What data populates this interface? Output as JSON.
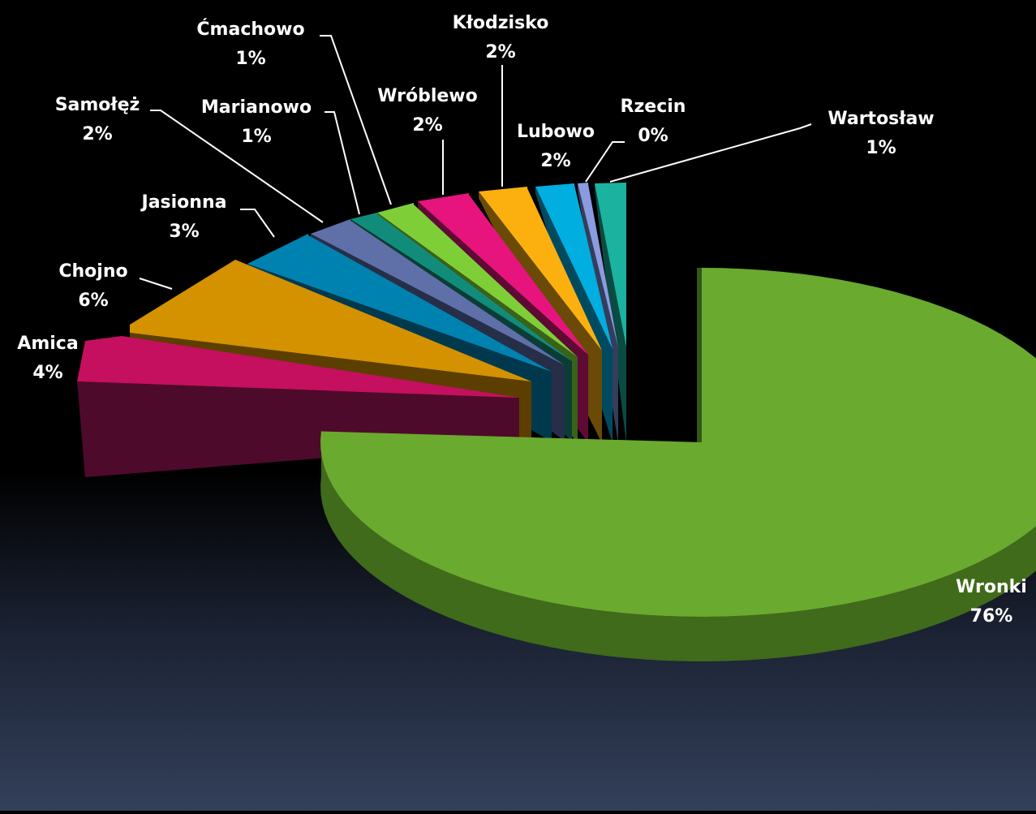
{
  "chart_data": {
    "type": "pie",
    "title": "",
    "legend": "none",
    "style": "3d-exploded",
    "slices": [
      {
        "label": "Wronki",
        "value": 76,
        "percent_label": "76%",
        "top": "#6aaa2e",
        "side": "#3f6b1a"
      },
      {
        "label": "Amica",
        "value": 4,
        "percent_label": "4%",
        "top": "#c4105e",
        "side": "#4e0a2a"
      },
      {
        "label": "Chojno",
        "value": 6,
        "percent_label": "6%",
        "top": "#d49200",
        "side": "#5c3f00"
      },
      {
        "label": "Jasionna",
        "value": 3,
        "percent_label": "3%",
        "top": "#0082b0",
        "side": "#00394d"
      },
      {
        "label": "Samołęż",
        "value": 2,
        "percent_label": "2%",
        "top": "#5f6fa8",
        "side": "#272e48"
      },
      {
        "label": "Marianowo",
        "value": 1,
        "percent_label": "1%",
        "top": "#128c7a",
        "side": "#0a3d36"
      },
      {
        "label": "Ćmachowo",
        "value": 1,
        "percent_label": "1%",
        "top": "#7ecf37",
        "side": "#39621a"
      },
      {
        "label": "Wróblewo",
        "value": 2,
        "percent_label": "2%",
        "top": "#e6147c",
        "side": "#5e0a34"
      },
      {
        "label": "Kłodzisko",
        "value": 2,
        "percent_label": "2%",
        "top": "#fcb010",
        "side": "#6a4a06"
      },
      {
        "label": "Lubowo",
        "value": 2,
        "percent_label": "2%",
        "top": "#00aee0",
        "side": "#004a60"
      },
      {
        "label": "Rzecin",
        "value": 0,
        "percent_label": "0%",
        "top": "#8a9be0",
        "side": "#353d5c"
      },
      {
        "label": "Wartosław",
        "value": 1,
        "percent_label": "1%",
        "top": "#1bb3a0",
        "side": "#0a4a42"
      }
    ]
  }
}
